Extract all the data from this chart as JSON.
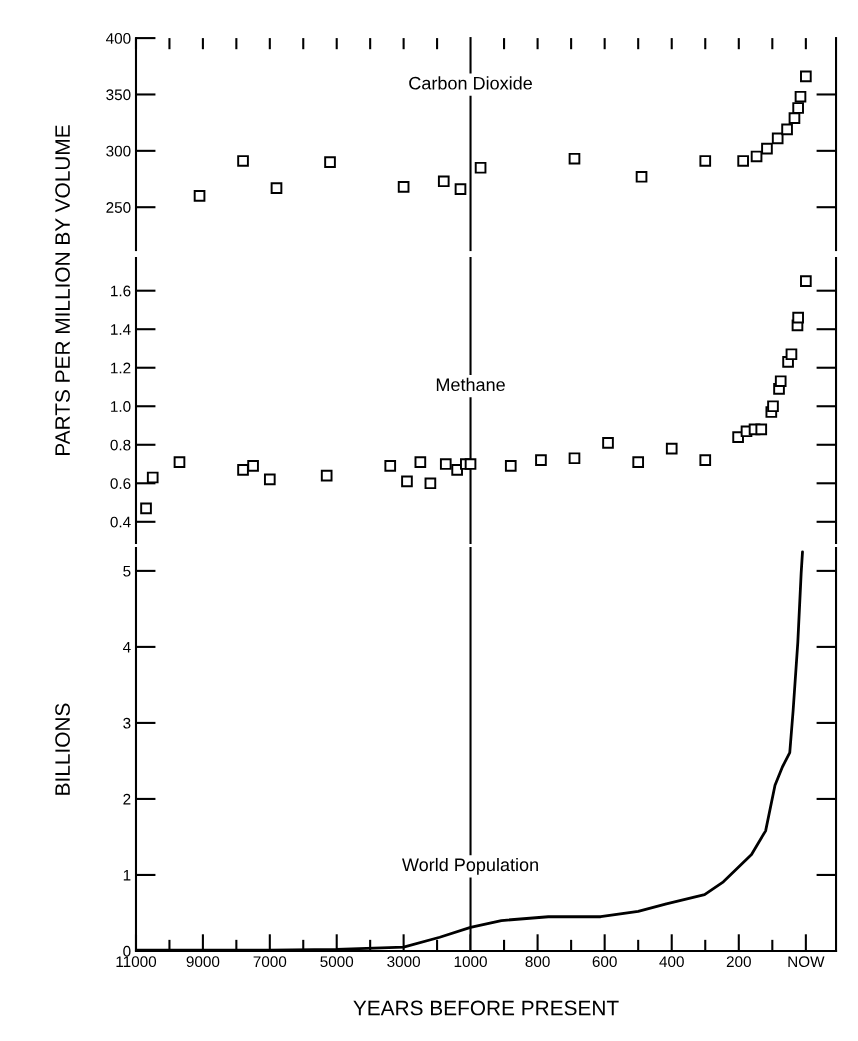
{
  "chart_data": [
    {
      "type": "scatter",
      "marker": "square",
      "ylabel": "PARTS PER MILLION BY VOLUME",
      "tick_labels": "y",
      "xlim": [
        11000,
        1000
      ],
      "xticks": [
        {
          "value": 11000,
          "label": null
        },
        {
          "value": 10000,
          "label": null
        },
        {
          "value": 9000,
          "label": null
        },
        {
          "value": 8000,
          "label": null
        },
        {
          "value": 7000,
          "label": null
        },
        {
          "value": 6000,
          "label": null
        },
        {
          "value": 5000,
          "label": null
        },
        {
          "value": 4000,
          "label": null
        },
        {
          "value": 3000,
          "label": null
        },
        {
          "value": 2000,
          "label": null
        }
      ],
      "ylim": [
        212,
        400
      ],
      "yticks": [
        250,
        300,
        350,
        400
      ],
      "series": [
        {
          "color": "#000000",
          "x": [
            9100,
            7800,
            6800,
            5200,
            3000,
            1800,
            1300
          ],
          "values": [
            260,
            291,
            267,
            290,
            268,
            273,
            266
          ]
        }
      ]
    },
    {
      "type": "scatter",
      "marker": "square",
      "annotations": [
        "Carbon Dioxide"
      ],
      "tick_labels": false,
      "xlim": [
        1000,
        -90
      ],
      "xticks": [
        {
          "value": 900,
          "label": null
        },
        {
          "value": 800,
          "label": null
        },
        {
          "value": 700,
          "label": null
        },
        {
          "value": 600,
          "label": null
        },
        {
          "value": 500,
          "label": null
        },
        {
          "value": 400,
          "label": null
        },
        {
          "value": 300,
          "label": null
        },
        {
          "value": 200,
          "label": null
        },
        {
          "value": 100,
          "label": null
        },
        {
          "value": 0,
          "label": null
        }
      ],
      "ylim": [
        212,
        400
      ],
      "yticks": [
        {
          "value": 250,
          "label": null
        },
        {
          "value": 300,
          "label": null
        },
        {
          "value": 350,
          "label": null
        }
      ],
      "series": [
        {
          "color": "#000000",
          "x": [
            970,
            690,
            490,
            300,
            187,
            147,
            116,
            84,
            56,
            34,
            23,
            16,
            0
          ],
          "values": [
            285,
            293,
            277,
            291,
            291,
            295,
            302,
            311,
            319,
            329,
            338,
            348,
            366
          ]
        }
      ]
    },
    {
      "type": "scatter",
      "marker": "square",
      "tick_labels": "y",
      "xlim": [
        11000,
        1000
      ],
      "ylim": [
        0.29,
        1.77
      ],
      "yticks": [
        0.4,
        0.6,
        0.8,
        {
          "value": 1,
          "label": "1.0"
        },
        1.2,
        1.4,
        1.6
      ],
      "series": [
        {
          "color": "#000000",
          "x": [
            10700,
            10500,
            9700,
            7800,
            7500,
            7000,
            5300,
            3400,
            2900,
            2500,
            2200,
            1740,
            1400,
            1140
          ],
          "values": [
            0.47,
            0.63,
            0.71,
            0.67,
            0.69,
            0.62,
            0.64,
            0.69,
            0.61,
            0.71,
            0.6,
            0.7,
            0.67,
            0.7
          ]
        }
      ]
    },
    {
      "type": "scatter",
      "marker": "square",
      "annotations": [
        "Methane"
      ],
      "tick_labels": false,
      "xlim": [
        1000,
        -90
      ],
      "ylim": [
        0.29,
        1.77
      ],
      "yticks": [
        {
          "value": 0.4,
          "label": null
        },
        {
          "value": 0.6,
          "label": null
        },
        {
          "value": 0.8,
          "label": null
        },
        {
          "value": 1,
          "label": null
        },
        {
          "value": 1.2,
          "label": null
        },
        {
          "value": 1.4,
          "label": null
        },
        {
          "value": 1.6,
          "label": null
        }
      ],
      "series": [
        {
          "color": "#000000",
          "x": [
            1000,
            880,
            790,
            690,
            590,
            500,
            400,
            300,
            202,
            177,
            153,
            133,
            103,
            98,
            80,
            75,
            53,
            43,
            25,
            23,
            0
          ],
          "values": [
            0.7,
            0.69,
            0.72,
            0.73,
            0.81,
            0.71,
            0.78,
            0.72,
            0.84,
            0.87,
            0.88,
            0.88,
            0.97,
            1.0,
            1.09,
            1.13,
            1.23,
            1.27,
            1.42,
            1.46,
            1.65
          ]
        }
      ]
    },
    {
      "type": "line",
      "ylabel": "BILLIONS",
      "xlabel": "YEARS BEFORE PRESENT",
      "xlim": [
        11000,
        1000
      ],
      "xticks": [
        11000,
        {
          "value": 10000,
          "label": null
        },
        9000,
        {
          "value": 8000,
          "label": null
        },
        7000,
        {
          "value": 6000,
          "label": null
        },
        5000,
        {
          "value": 4000,
          "label": null
        },
        3000,
        {
          "value": 2000,
          "label": null
        },
        1000
      ],
      "ylim": [
        0,
        5.3
      ],
      "yticks": [
        0,
        1,
        2,
        3,
        4,
        5
      ],
      "series": [
        {
          "color": "#000000",
          "x": [
            11000,
            7000,
            5000,
            3000,
            1920,
            1000
          ],
          "values": [
            0.01,
            0.01,
            0.02,
            0.05,
            0.18,
            0.31
          ]
        }
      ]
    },
    {
      "type": "line",
      "annotations": [
        "World Population"
      ],
      "tick_labels": "x",
      "xlim": [
        1000,
        -90
      ],
      "xticks": [
        {
          "value": 900,
          "label": null
        },
        800,
        {
          "value": 700,
          "label": null
        },
        600,
        {
          "value": 500,
          "label": null
        },
        400,
        {
          "value": 300,
          "label": null
        },
        200,
        {
          "value": 100,
          "label": null
        },
        {
          "value": 0,
          "label": "NOW"
        }
      ],
      "ylim": [
        0,
        5.3
      ],
      "yticks": [
        {
          "value": 1,
          "label": null
        },
        {
          "value": 2,
          "label": null
        },
        {
          "value": 3,
          "label": null
        },
        {
          "value": 4,
          "label": null
        },
        {
          "value": 5,
          "label": null
        }
      ],
      "series": [
        {
          "color": "#000000",
          "x": [
            1000,
            908,
            768,
            612,
            500,
            416,
            302,
            246,
            162,
            120,
            92,
            70,
            48,
            38,
            24,
            14,
            10
          ],
          "values": [
            0.31,
            0.4,
            0.45,
            0.45,
            0.52,
            0.62,
            0.74,
            0.91,
            1.27,
            1.58,
            2.18,
            2.42,
            2.61,
            3.16,
            4.06,
            4.97,
            5.25
          ]
        }
      ]
    }
  ]
}
